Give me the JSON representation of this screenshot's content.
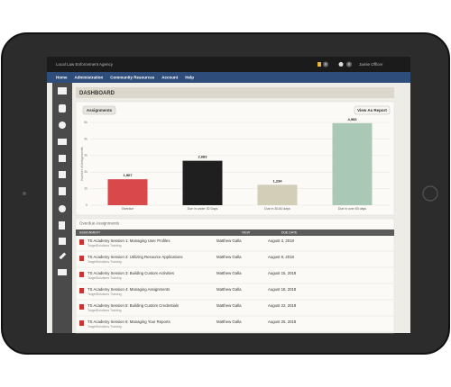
{
  "header": {
    "agency": "Local Law Enforcement Agency",
    "alerts": "0",
    "messages": "0",
    "user": "Jamie Officer"
  },
  "nav": [
    "Home",
    "Administration",
    "Community Resources",
    "Account",
    "Help"
  ],
  "page_title": "DASHBOARD",
  "buttons": {
    "assignments": "Assignments",
    "report": "View As Report"
  },
  "chart_data": {
    "type": "bar",
    "y_label": "Number of Assignments",
    "categories": [
      "Overdue",
      "Due in under 30 Days",
      "Due in 30-60 days",
      "Due in over 60 days"
    ],
    "values": [
      1567,
      2683,
      1234,
      4953
    ],
    "value_labels": [
      "1,567",
      "2,683",
      "1,234",
      "4,953"
    ],
    "colors": [
      "#d9494c",
      "#1f1f1f",
      "#d3ceb8",
      "#a9c9b6"
    ],
    "ylim": [
      0,
      5000
    ],
    "yticks": [
      0,
      {
        "value": 1000,
        "label": "1k"
      },
      {
        "value": 2000,
        "label": "2k"
      },
      {
        "value": 3000,
        "label": "3k"
      },
      {
        "value": 4000,
        "label": "4k"
      },
      {
        "value": 5000,
        "label": "5k"
      }
    ],
    "grid": true
  },
  "table": {
    "title": "Overdue Assignments",
    "columns": [
      "ASSIGNMENT",
      "VIEW",
      "DUE DATE"
    ],
    "rows": [
      {
        "title": "TS Academy Session 1: Managing User Profiles",
        "subtitle": "TargetSolutions Training",
        "owner": "Matthew Galla",
        "due": "August 3, 2018"
      },
      {
        "title": "TS Academy Session 2: Utilizing Resource Applications",
        "subtitle": "TargetSolutions Training",
        "owner": "Matthew Galla",
        "due": "August 9, 2018"
      },
      {
        "title": "TS Academy Session 3: Building Custom Activities",
        "subtitle": "TargetSolutions Training",
        "owner": "Matthew Galla",
        "due": "August 15, 2018"
      },
      {
        "title": "TS Academy Session 4: Managing Assignments",
        "subtitle": "TargetSolutions Training",
        "owner": "Matthew Galla",
        "due": "August 18, 2018"
      },
      {
        "title": "TS Academy Session 5: Building Custom Credentials",
        "subtitle": "TargetSolutions Training",
        "owner": "Matthew Galla",
        "due": "August 22, 2018"
      },
      {
        "title": "TS Academy Session 6: Managing Your Reports",
        "subtitle": "TargetSolutions Training",
        "owner": "Matthew Galla",
        "due": "August 25, 2018"
      }
    ]
  }
}
